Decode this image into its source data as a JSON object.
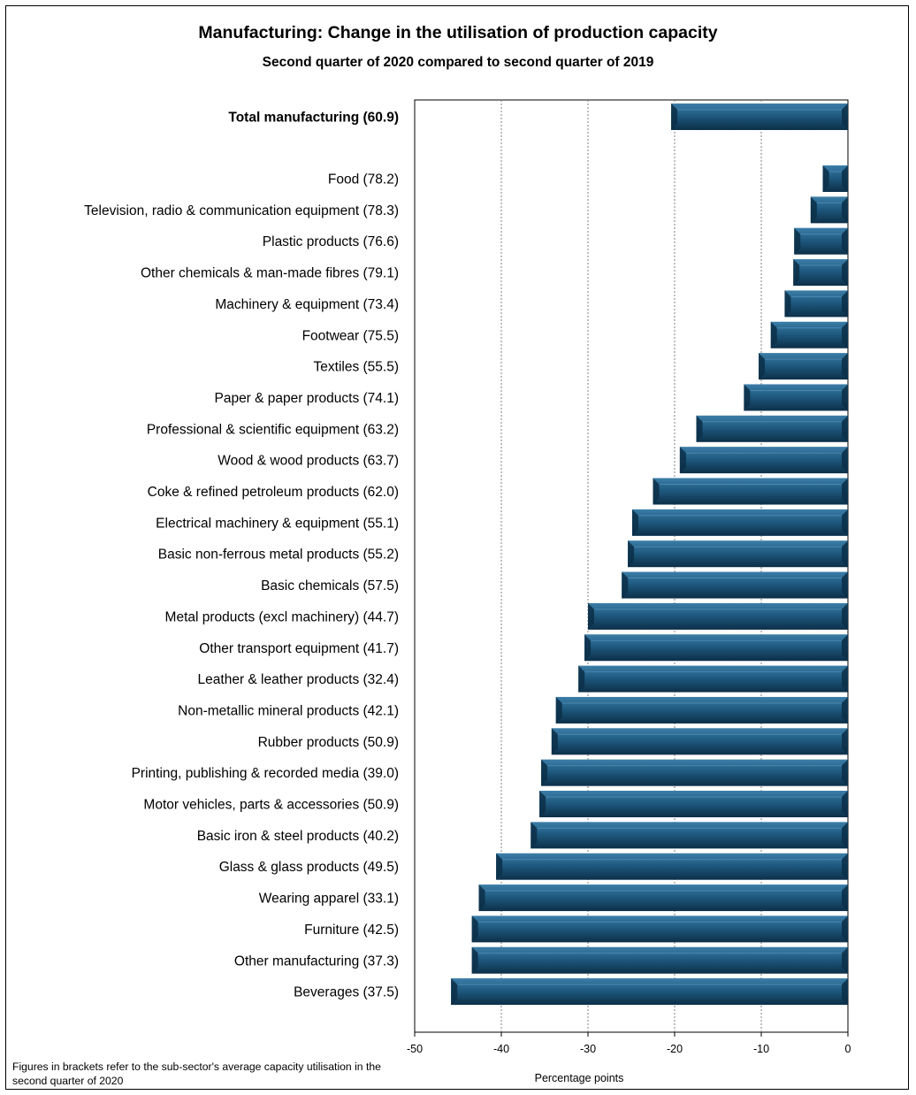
{
  "colors": {
    "bar": "#1f5a80",
    "bar_light": "#3c7ea8",
    "bar_dark": "#0c2f48",
    "grid": "#808080"
  },
  "chart_data": {
    "type": "bar",
    "orientation": "horizontal",
    "title": "Manufacturing: Change in the utilisation of production capacity",
    "subtitle": "Second quarter of 2020 compared to second quarter of 2019",
    "xlabel": "Percentage points",
    "xlim": [
      -50,
      0
    ],
    "xticks": [
      "-50",
      "-40",
      "-30",
      "-20",
      "-10",
      "0"
    ],
    "grid": "vertical dotted",
    "total": {
      "label": "Total manufacturing (60.9)",
      "value": -20.4
    },
    "categories": [
      "Food (78.2)",
      "Television, radio & communication equipment (78.3)",
      "Plastic products (76.6)",
      "Other chemicals & man-made fibres (79.1)",
      "Machinery & equipment (73.4)",
      "Footwear (75.5)",
      "Textiles (55.5)",
      "Paper & paper products (74.1)",
      "Professional & scientific equipment (63.2)",
      "Wood & wood products (63.7)",
      "Coke & refined petroleum products (62.0)",
      "Electrical machinery & equipment (55.1)",
      "Basic non-ferrous metal products (55.2)",
      "Basic chemicals (57.5)",
      "Metal products (excl machinery) (44.7)",
      "Other transport equipment (41.7)",
      "Leather & leather products (32.4)",
      "Non-metallic mineral products (42.1)",
      "Rubber products (50.9)",
      "Printing, publishing & recorded media (39.0)",
      "Motor vehicles, parts & accessories (50.9)",
      "Basic iron & steel products (40.2)",
      "Glass & glass products (49.5)",
      "Wearing apparel (33.1)",
      "Furniture (42.5)",
      "Other manufacturing (37.3)",
      "Beverages (37.5)"
    ],
    "values": [
      -2.9,
      -4.3,
      -6.2,
      -6.3,
      -7.3,
      -8.9,
      -10.3,
      -12.0,
      -17.5,
      -19.4,
      -22.5,
      -24.9,
      -25.4,
      -26.1,
      -30.0,
      -30.4,
      -31.1,
      -33.7,
      -34.2,
      -35.4,
      -35.6,
      -36.6,
      -40.6,
      -42.6,
      -43.4,
      -43.4,
      -45.8
    ]
  },
  "footnote": "Figures in brackets refer to the sub-sector's average capacity utilisation in the second quarter of 2020"
}
